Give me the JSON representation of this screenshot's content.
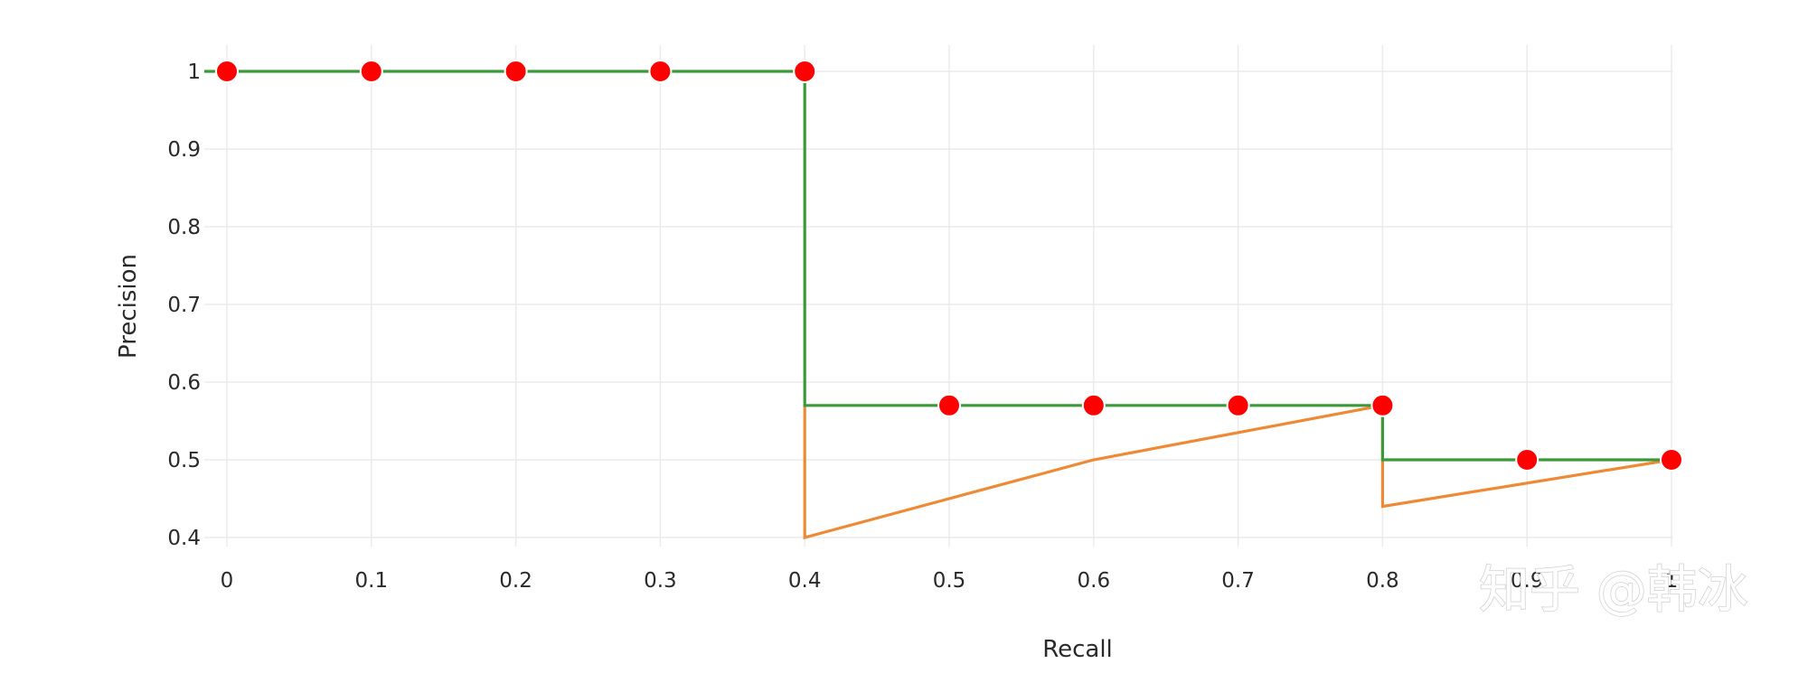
{
  "chart_data": {
    "type": "line",
    "xlabel": "Recall",
    "ylabel": "Precision",
    "xlim": [
      0,
      1
    ],
    "ylim": [
      0.4,
      1
    ],
    "x_ticks": [
      "0",
      "0.1",
      "0.2",
      "0.3",
      "0.4",
      "0.5",
      "0.6",
      "0.7",
      "0.8",
      "0.9",
      "1"
    ],
    "y_ticks": [
      "0.4",
      "0.5",
      "0.6",
      "0.7",
      "0.8",
      "0.9",
      "1"
    ],
    "grid": true,
    "legend": "none",
    "series": [
      {
        "color": "#3a9a3a",
        "line_style": "step",
        "x": [
          0,
          0.4,
          0.4,
          0.8,
          0.8,
          1.0
        ],
        "y": [
          1.0,
          1.0,
          0.57,
          0.57,
          0.5,
          0.5
        ]
      },
      {
        "color": "#ee8a35",
        "line_style": "line",
        "x": [
          0.4,
          0.4,
          0.6,
          0.8,
          0.8,
          1.0
        ],
        "y": [
          0.57,
          0.4,
          0.5,
          0.57,
          0.44,
          0.5
        ]
      },
      {
        "color": "#ff0000",
        "line_style": "markers",
        "x": [
          0,
          0.1,
          0.2,
          0.3,
          0.4,
          0.5,
          0.6,
          0.7,
          0.8,
          0.9,
          1.0
        ],
        "y": [
          1.0,
          1.0,
          1.0,
          1.0,
          1.0,
          0.57,
          0.57,
          0.57,
          0.57,
          0.5,
          0.5
        ]
      }
    ]
  },
  "watermark": "知乎 @韩冰"
}
